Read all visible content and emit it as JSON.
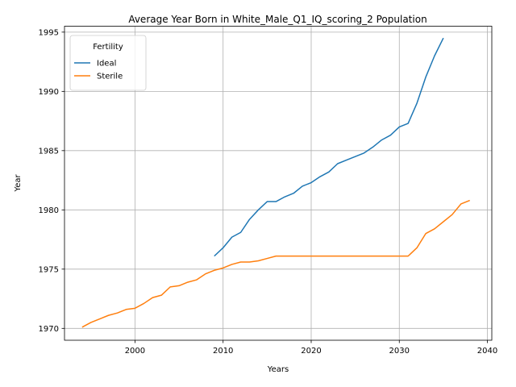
{
  "chart_data": {
    "type": "line",
    "title": "Average Year Born in White_Male_Q1_IQ_scoring_2 Population",
    "xlabel": "Years",
    "ylabel": "Year",
    "xlim": [
      1992,
      2040.5
    ],
    "ylim": [
      1969,
      1995.5
    ],
    "xticks": [
      2000,
      2010,
      2020,
      2030,
      2040
    ],
    "yticks": [
      1970,
      1975,
      1980,
      1985,
      1990,
      1995
    ],
    "grid": true,
    "legend": {
      "title": "Fertility",
      "placement": "top-left"
    },
    "series": [
      {
        "name": "Ideal",
        "color": "#1f77b4",
        "x": [
          2009,
          2010,
          2011,
          2012,
          2013,
          2014,
          2015,
          2016,
          2017,
          2018,
          2019,
          2020,
          2021,
          2022,
          2023,
          2024,
          2025,
          2026,
          2027,
          2028,
          2029,
          2030,
          2031,
          2032,
          2033,
          2034,
          2035
        ],
        "y": [
          1976.1,
          1976.8,
          1977.7,
          1978.1,
          1979.2,
          1980.0,
          1980.7,
          1980.7,
          1981.1,
          1981.4,
          1982.0,
          1982.3,
          1982.8,
          1983.2,
          1983.9,
          1984.2,
          1984.5,
          1984.8,
          1985.3,
          1985.9,
          1986.3,
          1987.0,
          1987.3,
          1989.0,
          1991.2,
          1993.0,
          1994.5
        ]
      },
      {
        "name": "Sterile",
        "color": "#ff7f0e",
        "x": [
          1994,
          1995,
          1996,
          1997,
          1998,
          1999,
          2000,
          2001,
          2002,
          2003,
          2004,
          2005,
          2006,
          2007,
          2008,
          2009,
          2010,
          2011,
          2012,
          2013,
          2014,
          2015,
          2016,
          2017,
          2018,
          2019,
          2020,
          2021,
          2022,
          2023,
          2024,
          2025,
          2026,
          2027,
          2028,
          2029,
          2030,
          2031,
          2032,
          2033,
          2034,
          2035,
          2036,
          2037,
          2038
        ],
        "y": [
          1970.1,
          1970.5,
          1970.8,
          1971.1,
          1971.3,
          1971.6,
          1971.7,
          1972.1,
          1972.6,
          1972.8,
          1973.5,
          1973.6,
          1973.9,
          1974.1,
          1974.6,
          1974.9,
          1975.1,
          1975.4,
          1975.6,
          1975.6,
          1975.7,
          1975.9,
          1976.1,
          1976.1,
          1976.1,
          1976.1,
          1976.1,
          1976.1,
          1976.1,
          1976.1,
          1976.1,
          1976.1,
          1976.1,
          1976.1,
          1976.1,
          1976.1,
          1976.1,
          1976.1,
          1976.8,
          1978.0,
          1978.4,
          1979.0,
          1979.6,
          1980.5,
          1980.8
        ]
      }
    ]
  }
}
